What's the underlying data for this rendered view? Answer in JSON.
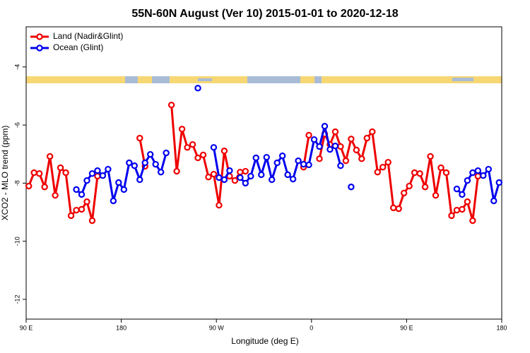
{
  "chart_data": {
    "type": "line",
    "title": "55N-60N August (Ver 10)   2015-01-01 to 2020-12-18",
    "x_label": "Longitude (deg E)",
    "y_label": "XCO2 - MLO trend (ppm)",
    "xlim": [
      90,
      540
    ],
    "ylim": [
      -12.68,
      -2.62
    ],
    "xticks": [
      {
        "value": 90,
        "label": "90 E"
      },
      180,
      {
        "value": 270,
        "label": "90 W"
      },
      {
        "value": 360,
        "label": "0"
      },
      {
        "value": 450,
        "label": "90 E"
      },
      {
        "value": 540,
        "label": "180"
      }
    ],
    "yticks": [
      -4,
      -6,
      -8,
      -10,
      -12
    ],
    "grid": false,
    "legend": "upper left",
    "x": [
      92.5,
      97.5,
      102.5,
      107.5,
      112.5,
      117.5,
      122.5,
      127.5,
      132.5,
      137.5,
      142.5,
      147.5,
      152.5,
      157.5,
      162.5,
      167.5,
      172.5,
      177.5,
      182.5,
      187.5,
      192.5,
      197.5,
      202.5,
      207.5,
      212.5,
      217.5,
      222.5,
      227.5,
      232.5,
      237.5,
      242.5,
      247.5,
      252.5,
      257.5,
      262.5,
      267.5,
      272.5,
      277.5,
      282.5,
      287.5,
      292.5,
      297.5,
      302.5,
      307.5,
      312.5,
      317.5,
      322.5,
      327.5,
      332.5,
      337.5,
      342.5,
      347.5,
      352.5,
      357.5,
      362.5,
      367.5,
      372.5,
      377.5,
      382.5,
      387.5,
      392.5,
      397.5,
      402.5,
      407.5,
      412.5,
      417.5,
      422.5,
      427.5,
      432.5,
      437.5,
      442.5,
      447.5,
      452.5,
      457.5,
      462.5,
      467.5,
      472.5,
      477.5,
      482.5,
      487.5,
      492.5,
      497.5,
      502.5,
      507.5,
      512.5,
      517.5,
      522.5,
      527.5,
      532.5,
      537.5
    ],
    "series": [
      {
        "name": "Land (Nadir&Glint)",
        "color": "#ee0000",
        "values": [
          -8.1,
          -7.64,
          -7.67,
          -8.13,
          -7.08,
          -8.42,
          -7.47,
          -7.64,
          -9.12,
          -8.93,
          -8.9,
          -8.64,
          -9.29,
          -7.76,
          null,
          null,
          null,
          null,
          null,
          null,
          null,
          -6.45,
          -7.42,
          null,
          null,
          null,
          null,
          -5.31,
          -7.59,
          -6.14,
          -6.77,
          -6.67,
          -7.13,
          -7.03,
          -7.79,
          -7.69,
          -8.76,
          -6.89,
          -7.76,
          -7.91,
          -7.62,
          -7.59,
          null,
          null,
          null,
          null,
          null,
          null,
          null,
          null,
          null,
          null,
          -7.45,
          -6.35,
          null,
          -7.16,
          -6.31,
          -6.67,
          -6.23,
          -6.74,
          -7.23,
          -6.48,
          -6.86,
          -7.16,
          -6.45,
          -6.23,
          -7.62,
          -7.45,
          -7.28,
          -8.85,
          -8.88,
          -8.34,
          -8.1,
          -7.64,
          -7.67,
          -8.13,
          -7.08,
          -8.42,
          -7.47,
          -7.64,
          -9.12,
          -8.93,
          -8.9,
          -8.64,
          -9.29,
          -7.76,
          null,
          null,
          null,
          null
        ]
      },
      {
        "name": "Ocean (Glint)",
        "color": "#0000ee",
        "values": [
          null,
          null,
          null,
          null,
          null,
          null,
          null,
          null,
          null,
          -8.22,
          -8.39,
          -7.91,
          -7.67,
          -7.57,
          -7.74,
          -7.52,
          -8.61,
          -7.98,
          -8.22,
          -7.3,
          -7.4,
          -7.88,
          -7.3,
          -7.01,
          -7.35,
          -7.62,
          -6.96,
          null,
          null,
          null,
          null,
          null,
          -4.73,
          null,
          null,
          -6.77,
          -7.81,
          -7.88,
          -7.57,
          null,
          -7.81,
          -8.0,
          -7.76,
          -7.13,
          -7.71,
          -7.11,
          -7.88,
          -7.3,
          -7.06,
          -7.71,
          -7.86,
          -7.23,
          -7.35,
          -7.37,
          -6.5,
          -6.74,
          -6.04,
          -6.84,
          -6.72,
          -7.4,
          null,
          -8.13,
          null,
          null,
          null,
          null,
          null,
          null,
          null,
          null,
          null,
          null,
          null,
          null,
          null,
          null,
          null,
          null,
          null,
          null,
          null,
          -8.2,
          -8.39,
          -7.91,
          -7.64,
          -7.57,
          -7.74,
          -7.52,
          -8.61,
          -7.98
        ]
      }
    ]
  }
}
